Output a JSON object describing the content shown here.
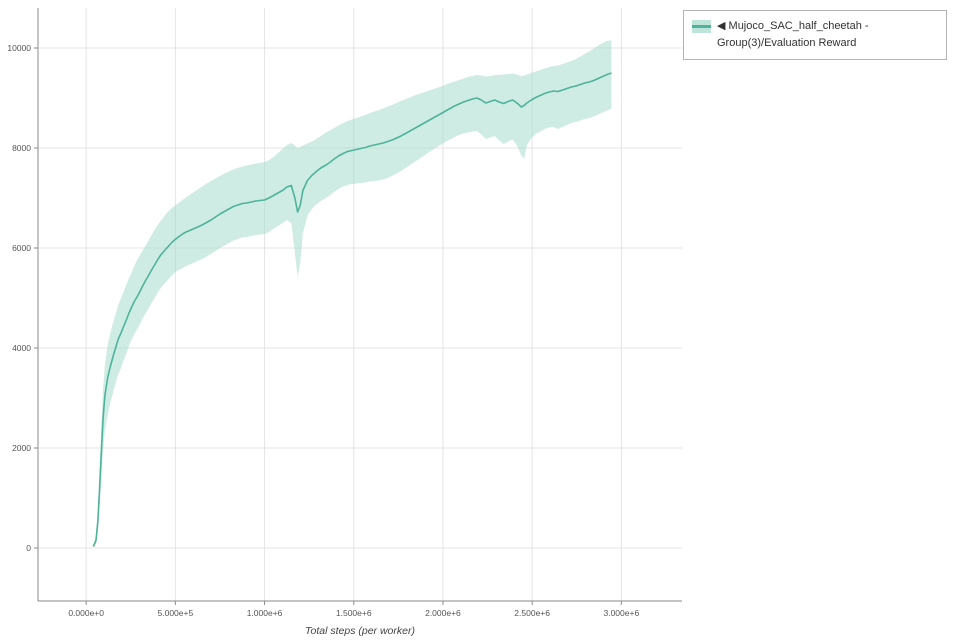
{
  "legend": {
    "marker": "◀",
    "label": "Mujoco_SAC_half_cheetah - Group(3)/Evaluation Reward"
  },
  "chart_data": {
    "type": "line",
    "title": "",
    "xlabel": "Total steps (per worker)",
    "ylabel": "",
    "grid": true,
    "legend_position": "top-right-outside",
    "xlim": [
      -270000,
      3340000
    ],
    "ylim": [
      -1060,
      10800
    ],
    "x_ticks": [
      {
        "value": 0,
        "label": "0.000e+0"
      },
      {
        "value": 500000,
        "label": "5.000e+5"
      },
      {
        "value": 1000000,
        "label": "1.000e+6"
      },
      {
        "value": 1500000,
        "label": "1.500e+6"
      },
      {
        "value": 2000000,
        "label": "2.000e+6"
      },
      {
        "value": 2500000,
        "label": "2.500e+6"
      },
      {
        "value": 3000000,
        "label": "3.000e+6"
      }
    ],
    "y_ticks": [
      {
        "value": 0,
        "label": "0"
      },
      {
        "value": 2000,
        "label": "2000"
      },
      {
        "value": 4000,
        "label": "4000"
      },
      {
        "value": 6000,
        "label": "6000"
      },
      {
        "value": 8000,
        "label": "8000"
      },
      {
        "value": 10000,
        "label": "10000"
      }
    ],
    "series": [
      {
        "name": "Mujoco_SAC_half_cheetah - Group(3)/Evaluation Reward",
        "line_color": "#4fb39a",
        "band_color": "#9ed9c8",
        "points_format": [
          "total_steps",
          "mean_reward",
          "band_low",
          "band_high"
        ],
        "points": [
          [
            40000,
            30,
            10,
            60
          ],
          [
            55000,
            150,
            80,
            260
          ],
          [
            65000,
            520,
            330,
            760
          ],
          [
            75000,
            1150,
            800,
            1550
          ],
          [
            85000,
            1900,
            1350,
            2450
          ],
          [
            95000,
            2600,
            1950,
            3200
          ],
          [
            105000,
            3050,
            2350,
            3650
          ],
          [
            120000,
            3400,
            2650,
            4050
          ],
          [
            135000,
            3620,
            2900,
            4280
          ],
          [
            150000,
            3820,
            3100,
            4500
          ],
          [
            165000,
            4000,
            3300,
            4680
          ],
          [
            180000,
            4180,
            3480,
            4860
          ],
          [
            195000,
            4300,
            3600,
            5000
          ],
          [
            210000,
            4430,
            3750,
            5130
          ],
          [
            225000,
            4560,
            3880,
            5260
          ],
          [
            240000,
            4700,
            4050,
            5400
          ],
          [
            255000,
            4820,
            4170,
            5520
          ],
          [
            270000,
            4930,
            4280,
            5640
          ],
          [
            285000,
            5020,
            4370,
            5760
          ],
          [
            300000,
            5120,
            4470,
            5850
          ],
          [
            315000,
            5230,
            4580,
            5940
          ],
          [
            330000,
            5330,
            4680,
            6030
          ],
          [
            345000,
            5420,
            4760,
            6120
          ],
          [
            360000,
            5520,
            4860,
            6220
          ],
          [
            375000,
            5610,
            4950,
            6310
          ],
          [
            390000,
            5700,
            5040,
            6400
          ],
          [
            405000,
            5790,
            5130,
            6480
          ],
          [
            420000,
            5870,
            5210,
            6550
          ],
          [
            435000,
            5930,
            5270,
            6620
          ],
          [
            450000,
            5990,
            5330,
            6690
          ],
          [
            465000,
            6050,
            5390,
            6750
          ],
          [
            480000,
            6110,
            5450,
            6800
          ],
          [
            495000,
            6160,
            5500,
            6840
          ],
          [
            510000,
            6200,
            5540,
            6880
          ],
          [
            525000,
            6240,
            5570,
            6920
          ],
          [
            540000,
            6280,
            5600,
            6960
          ],
          [
            560000,
            6320,
            5640,
            7010
          ],
          [
            580000,
            6350,
            5670,
            7060
          ],
          [
            600000,
            6380,
            5700,
            7110
          ],
          [
            625000,
            6420,
            5740,
            7170
          ],
          [
            650000,
            6460,
            5780,
            7230
          ],
          [
            675000,
            6510,
            5830,
            7290
          ],
          [
            700000,
            6560,
            5880,
            7340
          ],
          [
            725000,
            6620,
            5940,
            7390
          ],
          [
            750000,
            6680,
            6000,
            7440
          ],
          [
            775000,
            6730,
            6050,
            7490
          ],
          [
            800000,
            6780,
            6100,
            7530
          ],
          [
            825000,
            6830,
            6150,
            7570
          ],
          [
            850000,
            6860,
            6180,
            7600
          ],
          [
            875000,
            6890,
            6210,
            7630
          ],
          [
            900000,
            6900,
            6220,
            7650
          ],
          [
            925000,
            6920,
            6240,
            7670
          ],
          [
            950000,
            6940,
            6260,
            7690
          ],
          [
            975000,
            6950,
            6270,
            7700
          ],
          [
            1000000,
            6960,
            6280,
            7720
          ],
          [
            1025000,
            7000,
            6320,
            7760
          ],
          [
            1050000,
            7050,
            6380,
            7820
          ],
          [
            1075000,
            7100,
            6440,
            7900
          ],
          [
            1100000,
            7150,
            6500,
            7980
          ],
          [
            1125000,
            7220,
            6560,
            8060
          ],
          [
            1150000,
            7250,
            6500,
            8100
          ],
          [
            1170000,
            7000,
            5900,
            8050
          ],
          [
            1185000,
            6720,
            5420,
            8000
          ],
          [
            1200000,
            6850,
            5700,
            8020
          ],
          [
            1215000,
            7150,
            6300,
            8050
          ],
          [
            1240000,
            7350,
            6650,
            8090
          ],
          [
            1265000,
            7450,
            6780,
            8130
          ],
          [
            1290000,
            7530,
            6870,
            8180
          ],
          [
            1315000,
            7600,
            6940,
            8240
          ],
          [
            1340000,
            7650,
            6990,
            8300
          ],
          [
            1365000,
            7710,
            7050,
            8350
          ],
          [
            1390000,
            7780,
            7120,
            8400
          ],
          [
            1415000,
            7840,
            7180,
            8450
          ],
          [
            1440000,
            7890,
            7230,
            8500
          ],
          [
            1465000,
            7930,
            7260,
            8540
          ],
          [
            1490000,
            7950,
            7280,
            8570
          ],
          [
            1515000,
            7970,
            7290,
            8600
          ],
          [
            1540000,
            7990,
            7300,
            8630
          ],
          [
            1565000,
            8010,
            7310,
            8660
          ],
          [
            1590000,
            8040,
            7330,
            8700
          ],
          [
            1615000,
            8060,
            7340,
            8730
          ],
          [
            1640000,
            8080,
            7350,
            8760
          ],
          [
            1665000,
            8100,
            7370,
            8790
          ],
          [
            1690000,
            8130,
            7400,
            8830
          ],
          [
            1715000,
            8160,
            7440,
            8860
          ],
          [
            1740000,
            8200,
            7490,
            8900
          ],
          [
            1765000,
            8240,
            7540,
            8940
          ],
          [
            1790000,
            8290,
            7600,
            8980
          ],
          [
            1815000,
            8340,
            7660,
            9010
          ],
          [
            1840000,
            8390,
            7720,
            9050
          ],
          [
            1865000,
            8440,
            7780,
            9080
          ],
          [
            1890000,
            8490,
            7840,
            9110
          ],
          [
            1915000,
            8540,
            7900,
            9140
          ],
          [
            1940000,
            8590,
            7960,
            9170
          ],
          [
            1965000,
            8640,
            8020,
            9200
          ],
          [
            1990000,
            8690,
            8070,
            9230
          ],
          [
            2015000,
            8740,
            8120,
            9270
          ],
          [
            2040000,
            8790,
            8170,
            9300
          ],
          [
            2065000,
            8840,
            8220,
            9330
          ],
          [
            2090000,
            8880,
            8260,
            9360
          ],
          [
            2115000,
            8920,
            8290,
            9390
          ],
          [
            2140000,
            8950,
            8310,
            9420
          ],
          [
            2165000,
            8980,
            8330,
            9440
          ],
          [
            2190000,
            9000,
            8340,
            9460
          ],
          [
            2215000,
            8960,
            8270,
            9450
          ],
          [
            2240000,
            8900,
            8180,
            9430
          ],
          [
            2265000,
            8930,
            8210,
            9440
          ],
          [
            2290000,
            8960,
            8240,
            9460
          ],
          [
            2315000,
            8920,
            8150,
            9460
          ],
          [
            2340000,
            8890,
            8080,
            9470
          ],
          [
            2365000,
            8930,
            8130,
            9480
          ],
          [
            2390000,
            8960,
            8170,
            9490
          ],
          [
            2415000,
            8900,
            8050,
            9470
          ],
          [
            2440000,
            8820,
            7850,
            9440
          ],
          [
            2455000,
            8850,
            7780,
            9450
          ],
          [
            2470000,
            8900,
            8050,
            9470
          ],
          [
            2495000,
            8960,
            8200,
            9500
          ],
          [
            2520000,
            9010,
            8280,
            9530
          ],
          [
            2545000,
            9050,
            8330,
            9560
          ],
          [
            2570000,
            9090,
            8380,
            9590
          ],
          [
            2595000,
            9120,
            8410,
            9620
          ],
          [
            2620000,
            9140,
            8420,
            9640
          ],
          [
            2645000,
            9130,
            8380,
            9650
          ],
          [
            2670000,
            9160,
            8420,
            9680
          ],
          [
            2695000,
            9190,
            8460,
            9710
          ],
          [
            2720000,
            9220,
            8500,
            9740
          ],
          [
            2745000,
            9240,
            8520,
            9780
          ],
          [
            2770000,
            9270,
            8550,
            9830
          ],
          [
            2795000,
            9300,
            8580,
            9880
          ],
          [
            2820000,
            9320,
            8600,
            9930
          ],
          [
            2845000,
            9350,
            8630,
            9990
          ],
          [
            2870000,
            9390,
            8670,
            10050
          ],
          [
            2895000,
            9430,
            8710,
            10100
          ],
          [
            2920000,
            9470,
            8750,
            10140
          ],
          [
            2945000,
            9500,
            8790,
            10160
          ]
        ]
      }
    ],
    "colors": {
      "grid": "#e4e4e4",
      "axis": "#8a8a8a",
      "tick_text": "#555555",
      "xlabel_text": "#444444"
    }
  }
}
